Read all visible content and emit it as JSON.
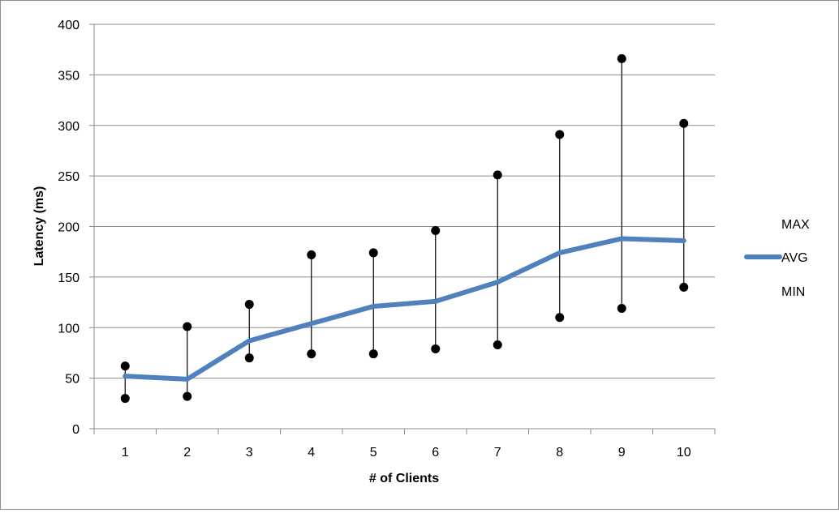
{
  "chart_data": {
    "type": "line",
    "title": "",
    "xlabel": "# of Clients",
    "ylabel": "Latency (ms)",
    "categories": [
      "1",
      "2",
      "3",
      "4",
      "5",
      "6",
      "7",
      "8",
      "9",
      "10"
    ],
    "ylim": [
      0,
      400
    ],
    "yticks": [
      0,
      50,
      100,
      150,
      200,
      250,
      300,
      350,
      400
    ],
    "grid": true,
    "legend_position": "right",
    "series": [
      {
        "name": "MAX",
        "values": [
          62,
          101,
          123,
          172,
          174,
          196,
          251,
          291,
          366,
          302
        ],
        "marker": "dot",
        "line": false,
        "color": "#000000"
      },
      {
        "name": "AVG",
        "values": [
          52,
          49,
          87,
          104,
          121,
          126,
          145,
          174,
          188,
          186
        ],
        "marker": "none",
        "line": true,
        "color": "#4f81bd"
      },
      {
        "name": "MIN",
        "values": [
          30,
          32,
          70,
          74,
          74,
          79,
          83,
          110,
          119,
          140
        ],
        "marker": "dot",
        "line": false,
        "color": "#000000"
      }
    ],
    "hi_lo_lines": true
  }
}
